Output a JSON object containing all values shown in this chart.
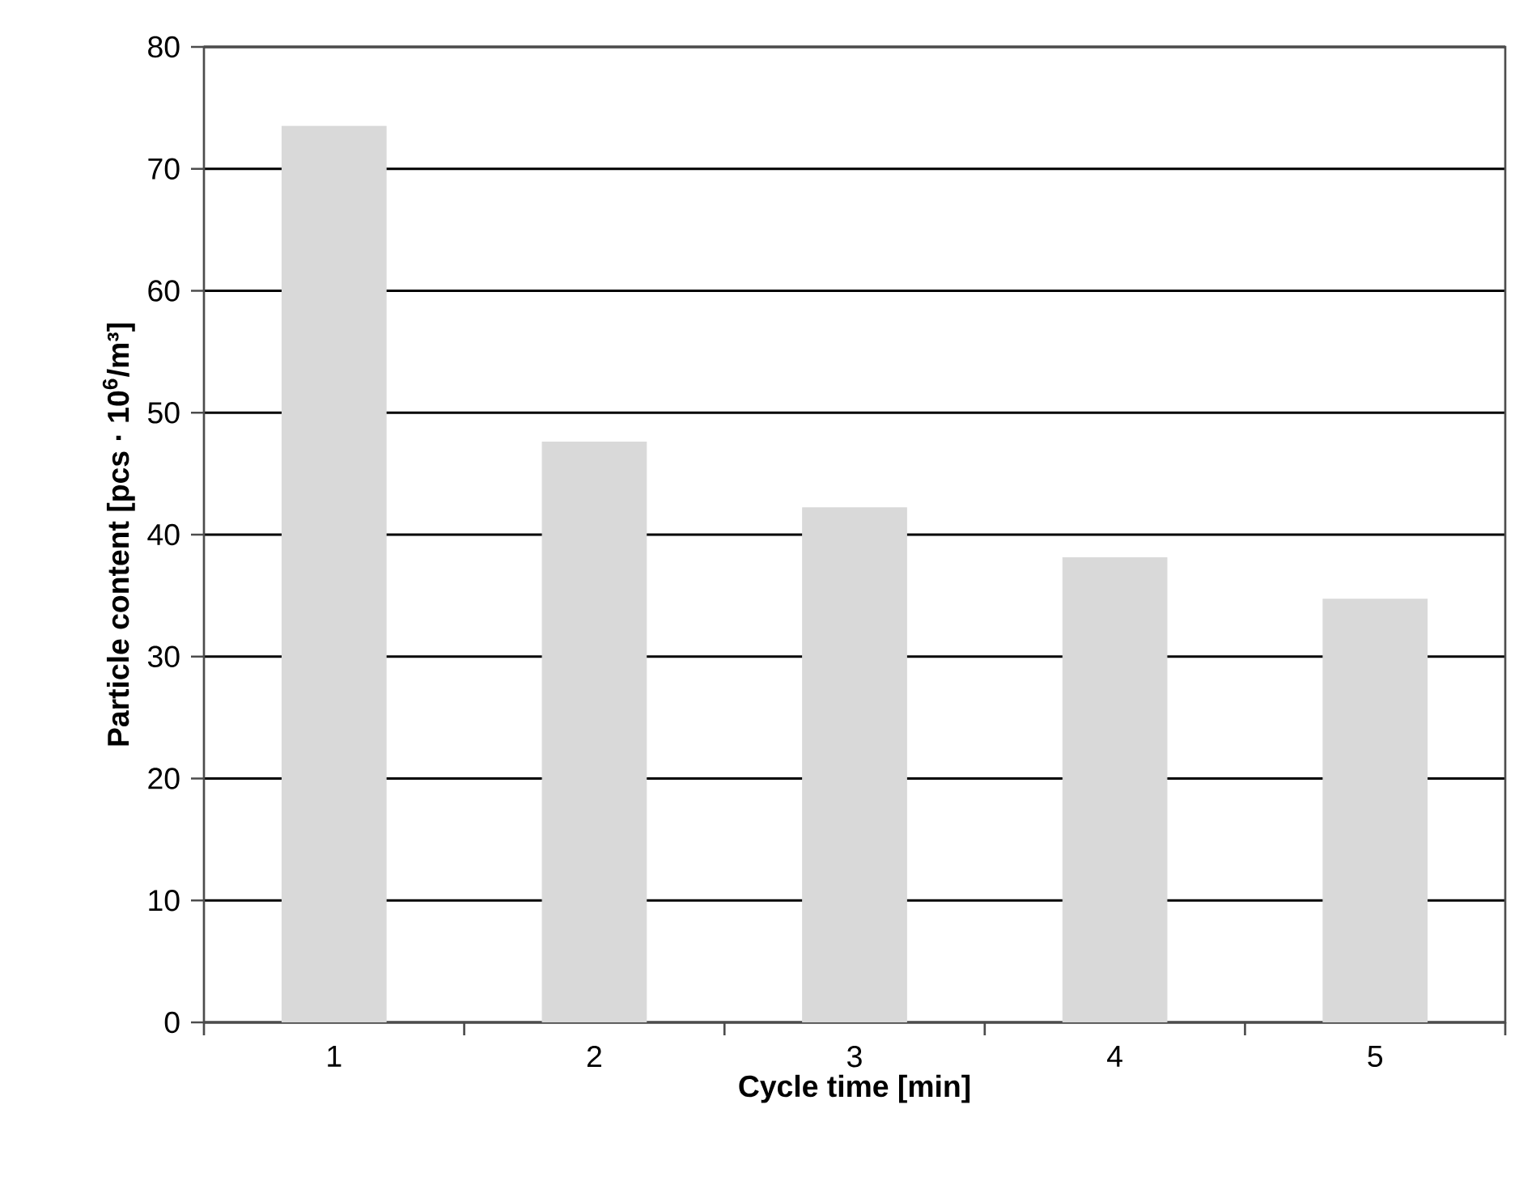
{
  "chart_data": {
    "type": "bar",
    "xlabel": "Cycle time [min]",
    "ylabel": "Particle content  [pcs · 10$^{6}$/m³]",
    "categories": [
      "1",
      "2",
      "3",
      "4",
      "5"
    ],
    "values": [
      73.5,
      47.6,
      42.2,
      38.1,
      34.7
    ],
    "color": "#d9d9d9",
    "ylim": [
      0,
      80
    ],
    "yticks": [
      0,
      10,
      20,
      30,
      40,
      50,
      60,
      70,
      80
    ],
    "grid": "y"
  }
}
